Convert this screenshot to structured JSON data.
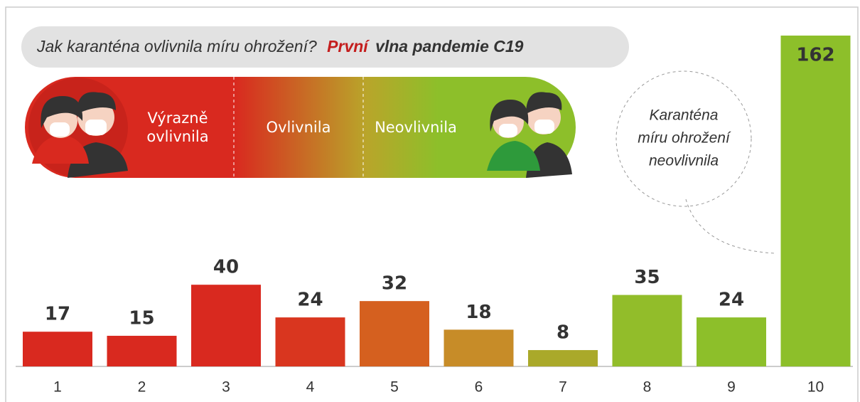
{
  "chart_data": {
    "type": "bar",
    "title": {
      "question": "Jak karanténa ovlivnila míru ohrožení?",
      "highlight": "První",
      "rest": "vlna pandemie C19"
    },
    "scale_labels": [
      [
        "Výrazně",
        "ovlivnila"
      ],
      [
        "Ovlivnila"
      ],
      [
        "Neovlivnila"
      ]
    ],
    "annotation": [
      "Karanténa",
      "míru ohrožení",
      "neovlivnila"
    ],
    "categories": [
      "1",
      "2",
      "3",
      "4",
      "5",
      "6",
      "7",
      "8",
      "9",
      "10"
    ],
    "values": [
      17,
      15,
      40,
      24,
      32,
      18,
      8,
      35,
      24,
      162
    ],
    "colors": [
      "#d9291f",
      "#d9291f",
      "#d9291f",
      "#d9361f",
      "#d5601f",
      "#c78c28",
      "#aaa92a",
      "#92bd2a",
      "#8dbf2a",
      "#8dbf2a"
    ],
    "ylim": [
      0,
      162
    ]
  }
}
